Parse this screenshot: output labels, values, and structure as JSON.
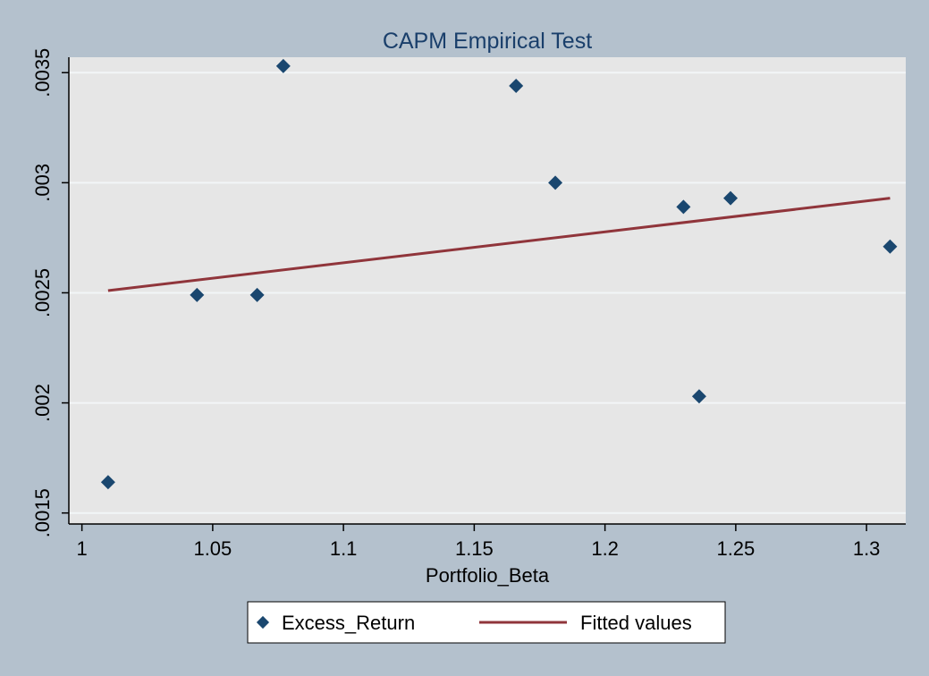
{
  "colors": {
    "background": "#b4c1cd",
    "plot_background": "#e6e6e6",
    "gridline": "#f2f5f7",
    "marker": "#1a476f",
    "fitted_line": "#90353b",
    "title": "#1a3f6b"
  },
  "chart_data": {
    "type": "scatter",
    "title": "CAPM Empirical Test",
    "xlabel": "Portfolio_Beta",
    "ylabel": "",
    "xlim": [
      0.995,
      1.315
    ],
    "ylim": [
      0.00145,
      0.00357
    ],
    "x_ticks": [
      1,
      1.05,
      1.1,
      1.15,
      1.2,
      1.25,
      1.3
    ],
    "x_tick_labels": [
      "1",
      "1.05",
      "1.1",
      "1.15",
      "1.2",
      "1.25",
      "1.3"
    ],
    "y_ticks": [
      0.0015,
      0.002,
      0.0025,
      0.003,
      0.0035
    ],
    "y_tick_labels": [
      ".0015",
      ".002",
      ".0025",
      ".003",
      ".0035"
    ],
    "grid": true,
    "legend_position": "bottom",
    "series": [
      {
        "name": "Excess_Return",
        "type": "scatter",
        "marker": "diamond",
        "x": [
          1.01,
          1.044,
          1.067,
          1.077,
          1.166,
          1.181,
          1.23,
          1.236,
          1.248,
          1.309
        ],
        "y": [
          0.00164,
          0.00249,
          0.00249,
          0.00353,
          0.00344,
          0.003,
          0.00289,
          0.00203,
          0.00293,
          0.00271
        ]
      },
      {
        "name": "Fitted values",
        "type": "line",
        "x": [
          1.01,
          1.309
        ],
        "y": [
          0.00251,
          0.00293
        ]
      }
    ]
  }
}
